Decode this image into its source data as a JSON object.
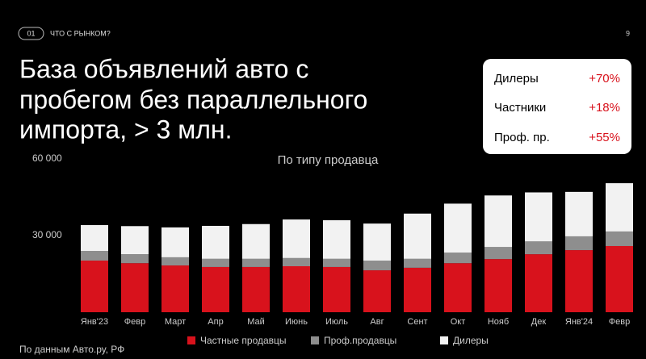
{
  "header": {
    "number": "01",
    "section": "ЧТО С РЫНКОМ?",
    "page": "9"
  },
  "title_lines": [
    "База объявлений авто с",
    "пробегом без параллельного",
    "импорта, > 3 млн."
  ],
  "highlights": [
    {
      "label": "Дилеры",
      "value": "+70%"
    },
    {
      "label": "Частники",
      "value": "+18%"
    },
    {
      "label": "Проф. пр.",
      "value": "+55%"
    }
  ],
  "source": "По данным Авто.ру, РФ",
  "chart_data": {
    "type": "stacked-bar",
    "subtitle": "По типу продавца",
    "categories": [
      "Янв'23",
      "Февр",
      "Март",
      "Апр",
      "Май",
      "Июнь",
      "Июль",
      "Авг",
      "Сент",
      "Окт",
      "Нояб",
      "Дек",
      "Янв'24",
      "Февр"
    ],
    "series": [
      {
        "name": "Частные продавцы",
        "color": "#d8121c",
        "values": [
          20200,
          19200,
          18300,
          17700,
          17700,
          18000,
          17700,
          16400,
          17400,
          19200,
          20800,
          22700,
          24300,
          25900
        ]
      },
      {
        "name": "Проф.продавцы",
        "color": "#8e8e8e",
        "values": [
          3800,
          3500,
          3200,
          3200,
          3200,
          3200,
          3200,
          3800,
          3500,
          4100,
          4700,
          5000,
          5400,
          5700
        ]
      },
      {
        "name": "Дилеры",
        "color": "#f2f2f2",
        "values": [
          10100,
          11000,
          11700,
          12900,
          13600,
          15100,
          15100,
          14500,
          17700,
          19200,
          20200,
          19200,
          17400,
          18900
        ]
      }
    ],
    "ylim": [
      0,
      60000
    ],
    "yticks": [
      {
        "value": 30000,
        "label": "30 000"
      },
      {
        "value": 60000,
        "label": "60 000"
      }
    ],
    "grid": false
  }
}
